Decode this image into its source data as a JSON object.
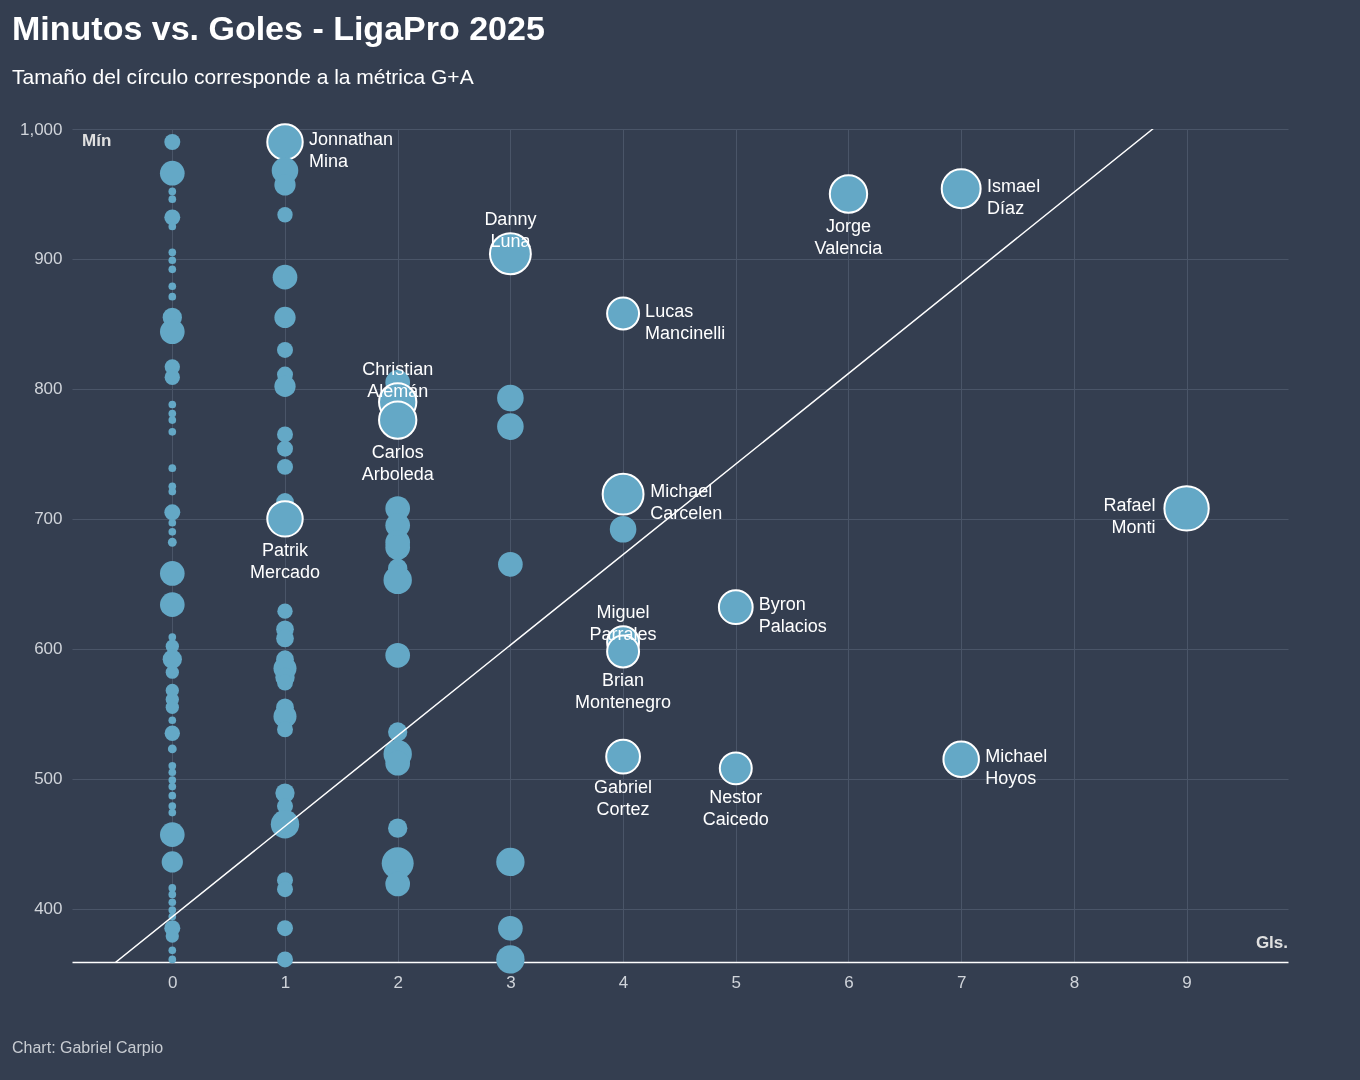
{
  "chart_data": {
    "type": "bubble",
    "title": "Minutos vs. Goles - LigaPro 2025",
    "subtitle": "Tamaño del círculo corresponde a la métrica G+A",
    "xlabel": "Gls.",
    "ylabel": "Mín",
    "xlim": [
      -0.89,
      9.9
    ],
    "xticks": [
      0,
      1,
      2,
      3,
      4,
      5,
      6,
      7,
      8,
      9
    ],
    "ylim": [
      359,
      1000
    ],
    "yticks": [
      400,
      500,
      600,
      700,
      800,
      900,
      {
        "value": 1000,
        "label": "1,000"
      }
    ],
    "grid": true,
    "series": [
      {
        "color": "#64a8c6",
        "x": [
          0,
          0,
          0,
          0,
          0,
          0,
          0,
          0,
          0,
          0,
          0,
          0,
          0,
          0,
          0,
          0,
          0,
          0,
          0,
          0,
          0,
          0,
          0,
          0,
          0,
          0,
          0,
          0,
          0,
          0,
          0,
          0,
          0,
          0,
          0,
          0,
          0,
          0,
          0,
          0,
          0,
          0,
          0,
          0,
          0,
          0,
          0,
          0,
          0,
          0,
          0,
          0,
          0,
          0,
          0,
          0,
          1,
          1,
          1,
          1,
          1,
          1,
          1,
          1,
          1,
          1,
          1,
          1,
          1,
          1,
          1,
          1,
          1,
          1,
          1,
          1,
          1,
          1,
          1,
          1,
          1,
          1,
          1,
          1,
          1,
          1,
          1,
          2,
          2,
          2,
          2,
          2,
          2,
          2,
          2,
          2,
          2,
          2,
          2,
          2,
          2,
          2,
          2,
          3,
          3,
          3,
          3,
          3,
          3,
          3,
          4,
          4,
          4,
          4,
          4,
          4,
          5,
          5,
          6,
          7,
          7,
          9
        ],
        "values": [
          990,
          966,
          952,
          946,
          932,
          925,
          905,
          899,
          892,
          879,
          871,
          855,
          844,
          817,
          809,
          788,
          781,
          776,
          767,
          739,
          725,
          721,
          705,
          697,
          690,
          682,
          658,
          634,
          609,
          602,
          592,
          582,
          568,
          561,
          555,
          545,
          535,
          523,
          510,
          505,
          499,
          494,
          487,
          479,
          474,
          457,
          436,
          416,
          411,
          405,
          399,
          394,
          385,
          379,
          368,
          361,
          990,
          968,
          957,
          934,
          886,
          855,
          830,
          811,
          802,
          765,
          754,
          740,
          713,
          700,
          629,
          615,
          608,
          592,
          585,
          578,
          574,
          555,
          548,
          538,
          489,
          479,
          465,
          422,
          415,
          385,
          361,
          805,
          790,
          776,
          708,
          695,
          682,
          678,
          662,
          653,
          595,
          536,
          519,
          512,
          462,
          435,
          419,
          904,
          793,
          771,
          665,
          436,
          385,
          361,
          858,
          719,
          692,
          605,
          598,
          517,
          632,
          508,
          950,
          954,
          515,
          708
        ],
        "sizes": [
          0.13,
          0.31,
          0.03,
          0.03,
          0.13,
          0.03,
          0.03,
          0.03,
          0.03,
          0.03,
          0.03,
          0.19,
          0.31,
          0.12,
          0.12,
          0.03,
          0.03,
          0.03,
          0.03,
          0.03,
          0.03,
          0.03,
          0.13,
          0.03,
          0.03,
          0.04,
          0.31,
          0.31,
          0.03,
          0.09,
          0.19,
          0.09,
          0.09,
          0.09,
          0.09,
          0.03,
          0.12,
          0.04,
          0.03,
          0.03,
          0.03,
          0.03,
          0.03,
          0.03,
          0.03,
          0.31,
          0.23,
          0.03,
          0.03,
          0.03,
          0.03,
          0.03,
          0.13,
          0.09,
          0.03,
          0.03,
          0.64,
          0.36,
          0.23,
          0.12,
          0.31,
          0.23,
          0.13,
          0.13,
          0.23,
          0.13,
          0.13,
          0.13,
          0.16,
          0.64,
          0.12,
          0.16,
          0.16,
          0.16,
          0.27,
          0.19,
          0.13,
          0.16,
          0.27,
          0.13,
          0.19,
          0.13,
          0.41,
          0.13,
          0.13,
          0.13,
          0.13,
          0.31,
          0.71,
          0.71,
          0.31,
          0.31,
          0.31,
          0.31,
          0.19,
          0.41,
          0.31,
          0.19,
          0.41,
          0.31,
          0.19,
          0.52,
          0.31,
          0.85,
          0.36,
          0.36,
          0.31,
          0.41,
          0.31,
          0.41,
          0.52,
          0.85,
          0.36,
          0.52,
          0.52,
          0.58,
          0.58,
          0.52,
          0.71,
          0.77,
          0.64,
          1
        ]
      },
      {
        "type": "line",
        "color": "#ffffff",
        "x": [
          -0.5,
          8.7
        ],
        "values": [
          359,
          1000
        ]
      }
    ],
    "annotations": [
      {
        "text": "Jonnathan Mina",
        "x": 1,
        "y": 990
      },
      {
        "text": "Danny Luna",
        "x": 3,
        "y": 904
      },
      {
        "text": "Christian Alemán",
        "x": 2,
        "y": 790
      },
      {
        "text": "Carlos Arboleda",
        "x": 2,
        "y": 776
      },
      {
        "text": "Patrik Mercado",
        "x": 1,
        "y": 700
      },
      {
        "text": "Lucas Mancinelli",
        "x": 4,
        "y": 858
      },
      {
        "text": "Jorge Valencia",
        "x": 6,
        "y": 950
      },
      {
        "text": "Ismael Díaz",
        "x": 7,
        "y": 954
      },
      {
        "text": "Michael Carcelen",
        "x": 4,
        "y": 719
      },
      {
        "text": "Rafael Monti",
        "x": 9,
        "y": 708
      },
      {
        "text": "Miguel Parrales",
        "x": 4,
        "y": 605
      },
      {
        "text": "Brian Montenegro",
        "x": 4,
        "y": 598
      },
      {
        "text": "Byron Palacios",
        "x": 5,
        "y": 632
      },
      {
        "text": "Gabriel Cortez",
        "x": 4,
        "y": 517
      },
      {
        "text": "Nestor Caicedo",
        "x": 5,
        "y": 508
      },
      {
        "text": "Michael Hoyos",
        "x": 7,
        "y": 515
      },
      "Chart: Gabriel Carpio"
    ]
  }
}
